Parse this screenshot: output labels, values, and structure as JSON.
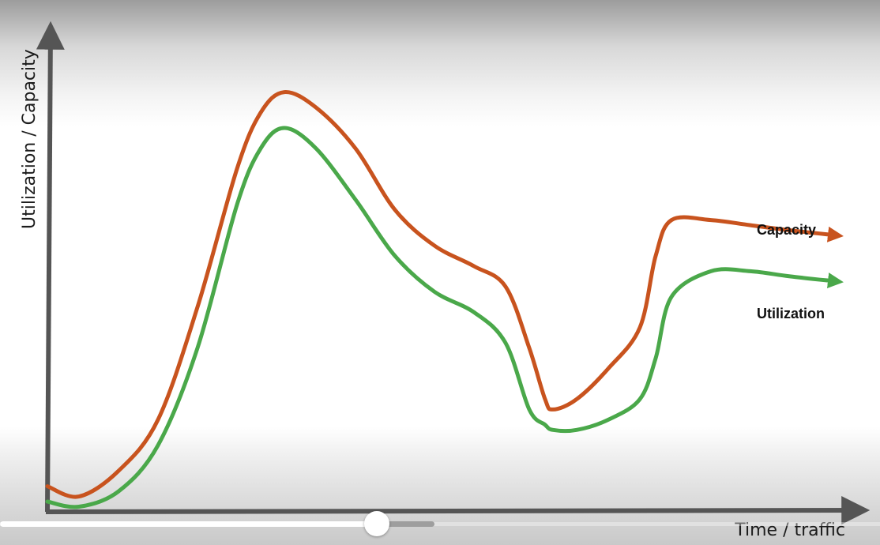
{
  "chart_data": {
    "type": "line",
    "xlabel": "Time / traffic",
    "ylabel": "Utilization / Capacity",
    "xlim": [
      0,
      100
    ],
    "ylim": [
      0,
      100
    ],
    "grid": false,
    "legend": "inline labels at right end of lines",
    "x": [
      0,
      4,
      9,
      14,
      19,
      24,
      27,
      30,
      34,
      39,
      44,
      49,
      54,
      58,
      61,
      63,
      64,
      67,
      71,
      75,
      77,
      79,
      84,
      89,
      94,
      100
    ],
    "series": [
      {
        "name": "Capacity",
        "color": "#c8531e",
        "values": [
          5,
          3,
          8,
          18,
          40,
          67,
          78,
          82,
          79,
          71,
          59,
          52,
          48,
          44,
          32,
          22,
          20,
          22,
          28,
          36,
          50,
          57,
          57,
          56,
          55,
          54
        ]
      },
      {
        "name": "Utilization",
        "color": "#4aa84a",
        "values": [
          2,
          1,
          4,
          13,
          32,
          60,
          71,
          75,
          71,
          61,
          50,
          43,
          39,
          33,
          20,
          17,
          16,
          16,
          18,
          22,
          30,
          42,
          47,
          47,
          46,
          45
        ]
      }
    ]
  },
  "player": {
    "progress": 0.428,
    "buffered": 0.494
  }
}
